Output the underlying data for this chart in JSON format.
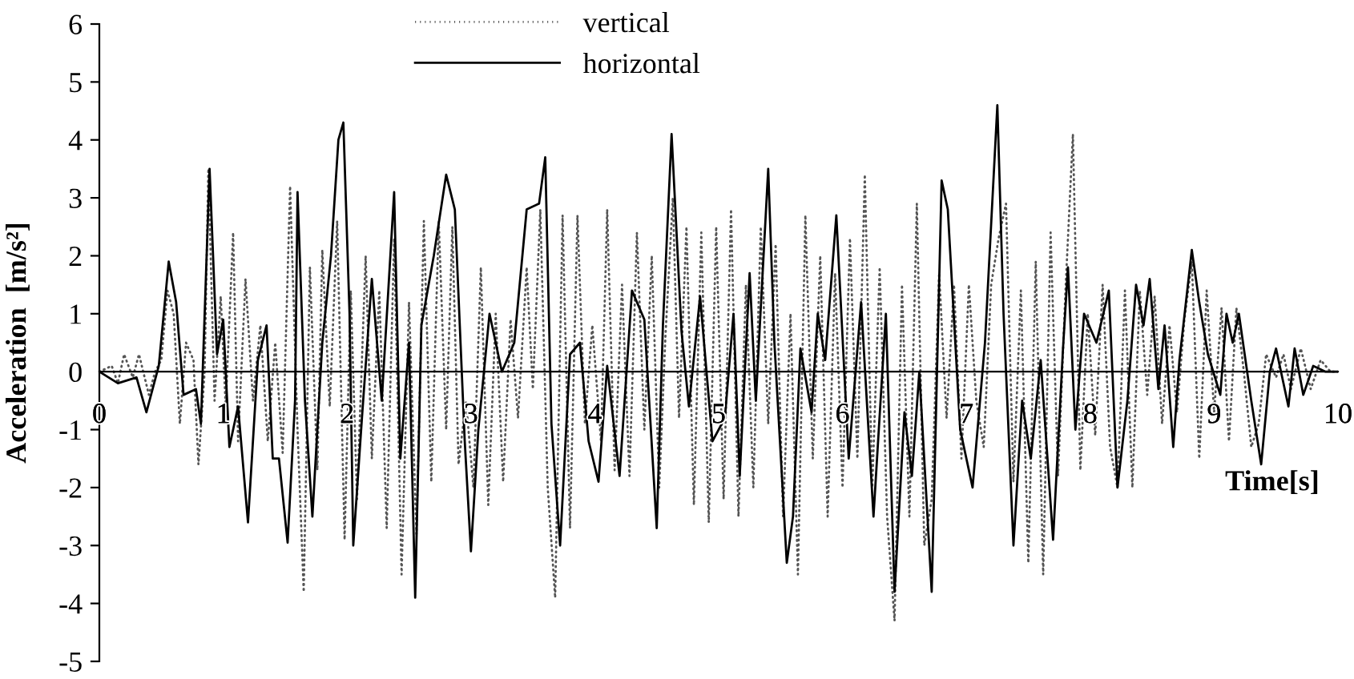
{
  "chart_data": {
    "type": "line",
    "xlabel": "Time[s]",
    "ylabel": "Acceleration  [m/s²]",
    "xlim": [
      0,
      10
    ],
    "ylim": [
      -5,
      6
    ],
    "xticks": [
      0,
      1,
      2,
      3,
      4,
      5,
      6,
      7,
      8,
      9,
      10
    ],
    "yticks": [
      -5,
      -4,
      -3,
      -2,
      -1,
      0,
      1,
      2,
      3,
      4,
      5,
      6
    ],
    "legend": "top",
    "grid": false,
    "marker": "none",
    "series": [
      {
        "name": "vertical",
        "color": "#555555",
        "line_style": "dotted",
        "x": [
          0,
          0.1,
          0.15,
          0.2,
          0.27,
          0.32,
          0.4,
          0.45,
          0.5,
          0.55,
          0.6,
          0.65,
          0.7,
          0.76,
          0.8,
          0.85,
          0.88,
          0.93,
          0.98,
          1.02,
          1.08,
          1.12,
          1.18,
          1.24,
          1.3,
          1.36,
          1.42,
          1.48,
          1.54,
          1.6,
          1.65,
          1.7,
          1.76,
          1.8,
          1.86,
          1.92,
          1.98,
          2.03,
          2.08,
          2.15,
          2.2,
          2.26,
          2.32,
          2.38,
          2.44,
          2.5,
          2.56,
          2.62,
          2.68,
          2.74,
          2.8,
          2.85,
          2.9,
          2.96,
          3.02,
          3.08,
          3.14,
          3.2,
          3.26,
          3.32,
          3.38,
          3.45,
          3.5,
          3.56,
          3.62,
          3.68,
          3.74,
          3.8,
          3.86,
          3.92,
          3.98,
          4.05,
          4.1,
          4.16,
          4.22,
          4.28,
          4.34,
          4.4,
          4.46,
          4.52,
          4.57,
          4.63,
          4.68,
          4.74,
          4.8,
          4.86,
          4.92,
          4.98,
          5.04,
          5.1,
          5.16,
          5.22,
          5.28,
          5.34,
          5.4,
          5.46,
          5.52,
          5.58,
          5.64,
          5.7,
          5.76,
          5.82,
          5.88,
          5.94,
          6.0,
          6.06,
          6.12,
          6.18,
          6.24,
          6.3,
          6.36,
          6.42,
          6.48,
          6.54,
          6.6,
          6.66,
          6.72,
          6.78,
          6.84,
          6.9,
          6.96,
          7.02,
          7.08,
          7.14,
          7.2,
          7.26,
          7.32,
          7.38,
          7.44,
          7.5,
          7.56,
          7.62,
          7.68,
          7.74,
          7.8,
          7.86,
          7.92,
          7.98,
          8.04,
          8.1,
          8.16,
          8.22,
          8.28,
          8.34,
          8.4,
          8.46,
          8.52,
          8.58,
          8.64,
          8.7,
          8.76,
          8.82,
          8.88,
          8.94,
          9.0,
          9.06,
          9.12,
          9.18,
          9.24,
          9.3,
          9.36,
          9.42,
          9.5,
          9.56,
          9.62,
          9.7,
          9.78,
          9.86,
          9.94,
          10.0
        ],
        "values": [
          0,
          0.1,
          -0.2,
          0.3,
          -0.1,
          0.3,
          -0.4,
          0.0,
          0.2,
          1.4,
          1.0,
          -0.9,
          0.5,
          0.2,
          -1.6,
          0.0,
          3.5,
          -0.5,
          1.3,
          -0.6,
          2.4,
          -1.2,
          1.6,
          -0.5,
          0.8,
          -1.2,
          0.5,
          -1.4,
          3.2,
          -1.0,
          -3.8,
          1.8,
          -1.7,
          2.1,
          -0.6,
          2.6,
          -2.9,
          1.4,
          -2.2,
          2.0,
          -1.5,
          1.4,
          -2.7,
          2.3,
          -3.5,
          1.2,
          -2.8,
          2.6,
          -1.9,
          2.6,
          -1.0,
          2.5,
          -1.6,
          -0.5,
          -2.0,
          1.8,
          -2.3,
          1.0,
          -1.9,
          0.9,
          -0.8,
          1.8,
          -0.3,
          2.8,
          -2.0,
          -3.9,
          2.7,
          -2.7,
          2.7,
          -0.9,
          0.8,
          -1.2,
          2.8,
          -1.7,
          1.5,
          -1.8,
          2.4,
          -1.0,
          2.0,
          -2.0,
          0.6,
          3.0,
          -0.8,
          2.5,
          -2.3,
          2.4,
          -2.6,
          2.5,
          -2.2,
          2.8,
          -2.5,
          1.5,
          -2.0,
          2.5,
          -0.9,
          2.2,
          -2.5,
          1.0,
          -3.5,
          2.7,
          -1.5,
          2.0,
          -2.5,
          1.7,
          -2.0,
          2.3,
          -1.5,
          3.4,
          -2.0,
          1.8,
          -2.5,
          -4.3,
          1.5,
          -2.5,
          2.9,
          -3.0,
          -2.2,
          1.7,
          -0.8,
          1.5,
          -1.5,
          1.5,
          -0.5,
          -1.3,
          1.5,
          2.3,
          2.9,
          -1.9,
          1.4,
          -3.3,
          1.9,
          -3.5,
          2.4,
          -1.8,
          1.4,
          4.1,
          -1.7,
          1.0,
          -1.1,
          1.5,
          -1.3,
          -2.0,
          1.4,
          -2.0,
          1.4,
          -0.4,
          1.3,
          -0.9,
          0.8,
          -0.7,
          0.9,
          1.9,
          -1.5,
          1.4,
          -0.7,
          1.1,
          -1.2,
          1.1,
          0.0,
          -1.3,
          -0.9,
          0.3,
          -0.1,
          0.3,
          -0.3,
          0.4,
          -0.3,
          0.2,
          0.0,
          0
        ]
      },
      {
        "name": "horizontal",
        "color": "#000000",
        "line_style": "solid",
        "x": [
          0,
          0.15,
          0.3,
          0.38,
          0.48,
          0.56,
          0.62,
          0.68,
          0.78,
          0.82,
          0.89,
          0.95,
          1.0,
          1.05,
          1.12,
          1.2,
          1.28,
          1.35,
          1.4,
          1.45,
          1.52,
          1.58,
          1.6,
          1.66,
          1.72,
          1.8,
          1.87,
          1.93,
          1.97,
          2.02,
          2.05,
          2.12,
          2.2,
          2.28,
          2.38,
          2.43,
          2.5,
          2.55,
          2.6,
          2.7,
          2.8,
          2.87,
          2.95,
          3.0,
          3.06,
          3.15,
          3.25,
          3.35,
          3.45,
          3.55,
          3.6,
          3.65,
          3.72,
          3.8,
          3.88,
          3.95,
          4.03,
          4.1,
          4.2,
          4.3,
          4.4,
          4.5,
          4.55,
          4.62,
          4.7,
          4.76,
          4.85,
          4.95,
          5.05,
          5.12,
          5.17,
          5.25,
          5.3,
          5.4,
          5.45,
          5.55,
          5.6,
          5.66,
          5.75,
          5.8,
          5.86,
          5.95,
          6.05,
          6.15,
          6.25,
          6.35,
          6.42,
          6.5,
          6.56,
          6.62,
          6.72,
          6.8,
          6.85,
          6.95,
          7.05,
          7.15,
          7.25,
          7.3,
          7.38,
          7.45,
          7.52,
          7.6,
          7.7,
          7.78,
          7.82,
          7.88,
          7.95,
          8.05,
          8.15,
          8.22,
          8.3,
          8.37,
          8.43,
          8.48,
          8.55,
          8.6,
          8.67,
          8.72,
          8.82,
          8.88,
          8.95,
          9.05,
          9.1,
          9.15,
          9.2,
          9.3,
          9.38,
          9.45,
          9.5,
          9.6,
          9.65,
          9.72,
          9.8,
          9.9,
          10.0
        ],
        "values": [
          0,
          -0.2,
          -0.1,
          -0.7,
          0.1,
          1.9,
          1.2,
          -0.4,
          -0.3,
          -0.9,
          3.5,
          0.3,
          0.9,
          -1.3,
          -0.6,
          -2.6,
          0.2,
          0.8,
          -1.5,
          -1.5,
          -2.95,
          -0.5,
          3.1,
          -0.5,
          -2.5,
          0.5,
          2.0,
          4.0,
          4.3,
          1.0,
          -3.0,
          -0.8,
          1.6,
          -0.5,
          3.1,
          -1.5,
          0.5,
          -3.9,
          0.8,
          2.0,
          3.4,
          2.8,
          -1.2,
          -3.1,
          -1.0,
          1.0,
          0.0,
          0.5,
          2.8,
          2.9,
          3.7,
          -0.9,
          -3.0,
          0.3,
          0.5,
          -1.2,
          -1.9,
          0.1,
          -1.8,
          1.4,
          0.9,
          -2.7,
          0.8,
          4.1,
          0.7,
          -0.6,
          1.3,
          -1.2,
          -0.8,
          1.0,
          -1.8,
          1.7,
          -0.5,
          3.5,
          0.5,
          -3.3,
          -2.5,
          0.4,
          -0.7,
          1.0,
          0.2,
          2.7,
          -1.5,
          1.2,
          -2.5,
          1.0,
          -3.8,
          -0.7,
          -1.8,
          0.0,
          -3.8,
          3.3,
          2.8,
          -1.0,
          -2.0,
          0.5,
          4.6,
          1.0,
          -3.0,
          -0.5,
          -1.5,
          0.2,
          -2.9,
          0.4,
          1.8,
          -1.0,
          1.0,
          0.5,
          1.4,
          -2.0,
          -0.5,
          1.5,
          0.8,
          1.6,
          -0.3,
          0.8,
          -1.3,
          0.2,
          2.1,
          1.2,
          0.3,
          -0.4,
          1.0,
          0.5,
          1.0,
          -0.5,
          -1.6,
          0.0,
          0.4,
          -0.6,
          0.4,
          -0.4,
          0.1,
          0.0,
          0
        ]
      }
    ]
  }
}
